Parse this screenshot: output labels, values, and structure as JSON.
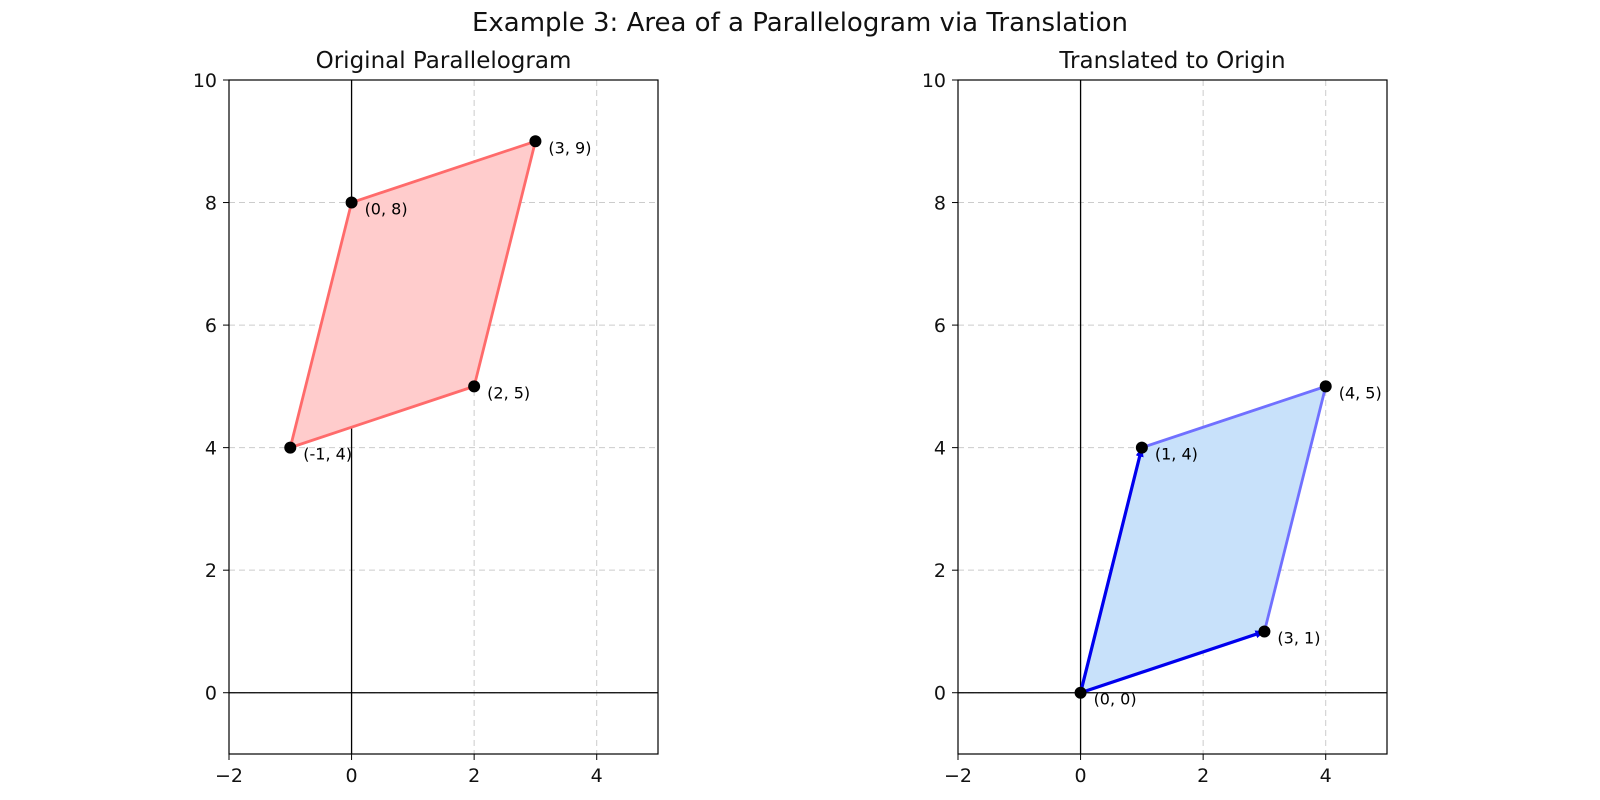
{
  "figure": {
    "suptitle": "Example 3: Area of a Parallelogram via Translation"
  },
  "chart_data": [
    {
      "type": "area",
      "title": "Original Parallelogram",
      "xlabel": "",
      "ylabel": "",
      "xlim": [
        -2,
        5
      ],
      "ylim": [
        -1,
        10
      ],
      "xticks": [
        -2,
        0,
        2,
        4
      ],
      "yticks": [
        0,
        2,
        4,
        6,
        8,
        10
      ],
      "grid": true,
      "polygon": [
        [
          -1,
          4
        ],
        [
          2,
          5
        ],
        [
          3,
          9
        ],
        [
          0,
          8
        ]
      ],
      "fill_color": "#ffcccc",
      "edge_color": "#ff6b6b",
      "points": [
        {
          "x": 0,
          "y": 8,
          "label": "(0, 8)"
        },
        {
          "x": 3,
          "y": 9,
          "label": "(3, 9)"
        },
        {
          "x": 2,
          "y": 5,
          "label": "(2, 5)"
        },
        {
          "x": -1,
          "y": 4,
          "label": "(-1, 4)"
        }
      ],
      "vectors": []
    },
    {
      "type": "area",
      "title": "Translated to Origin",
      "xlabel": "",
      "ylabel": "",
      "xlim": [
        -2,
        5
      ],
      "ylim": [
        -1,
        10
      ],
      "xticks": [
        -2,
        0,
        2,
        4
      ],
      "yticks": [
        0,
        2,
        4,
        6,
        8,
        10
      ],
      "grid": true,
      "polygon": [
        [
          0,
          0
        ],
        [
          3,
          1
        ],
        [
          4,
          5
        ],
        [
          1,
          4
        ]
      ],
      "fill_color": "#c8e1fa",
      "edge_color": "#7070ff",
      "points": [
        {
          "x": 1,
          "y": 4,
          "label": "(1, 4)"
        },
        {
          "x": 4,
          "y": 5,
          "label": "(4, 5)"
        },
        {
          "x": 3,
          "y": 1,
          "label": "(3, 1)"
        },
        {
          "x": 0,
          "y": 0,
          "label": "(0, 0)"
        }
      ],
      "vectors": [
        {
          "from": [
            0,
            0
          ],
          "to": [
            3,
            1
          ]
        },
        {
          "from": [
            0,
            0
          ],
          "to": [
            1,
            4
          ]
        }
      ],
      "vector_color": "#0000ee"
    }
  ]
}
